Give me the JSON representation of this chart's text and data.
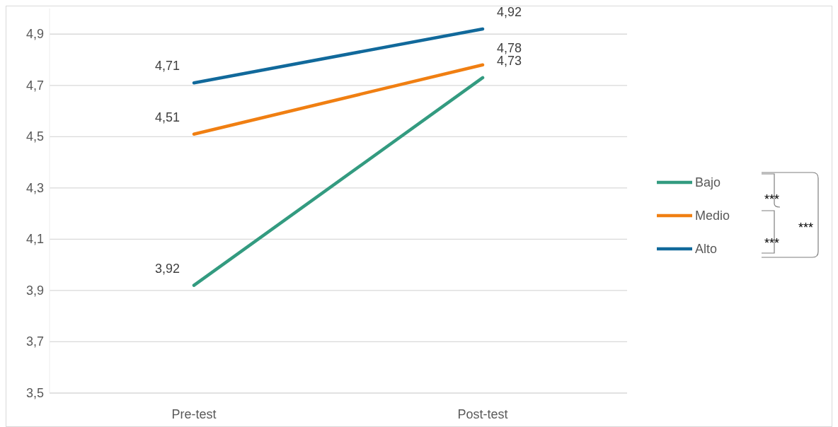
{
  "chart_data": {
    "type": "line",
    "categories": [
      "Pre-test",
      "Post-test"
    ],
    "series": [
      {
        "name": "Bajo",
        "color": "#339b80",
        "values": [
          3.92,
          4.73
        ],
        "value_labels": [
          "3,92",
          "4,73"
        ]
      },
      {
        "name": "Medio",
        "color": "#f07f12",
        "values": [
          4.51,
          4.78
        ],
        "value_labels": [
          "4,51",
          "4,78"
        ]
      },
      {
        "name": "Alto",
        "color": "#11699b",
        "values": [
          4.71,
          4.92
        ],
        "value_labels": [
          "4,71",
          "4,92"
        ]
      }
    ],
    "ylim": [
      3.5,
      5.0
    ],
    "yticks": [
      {
        "value": 3.5,
        "label": "3,5"
      },
      {
        "value": 3.7,
        "label": "3,7"
      },
      {
        "value": 3.9,
        "label": "3,9"
      },
      {
        "value": 4.1,
        "label": "4,1"
      },
      {
        "value": 4.3,
        "label": "4,3"
      },
      {
        "value": 4.5,
        "label": "4,5"
      },
      {
        "value": 4.7,
        "label": "4,7"
      },
      {
        "value": 4.9,
        "label": "4,9"
      }
    ],
    "grid": "y",
    "legend": "right",
    "marker": "none",
    "line_style": "solid",
    "annotations": [
      "***",
      "***",
      "***"
    ]
  }
}
